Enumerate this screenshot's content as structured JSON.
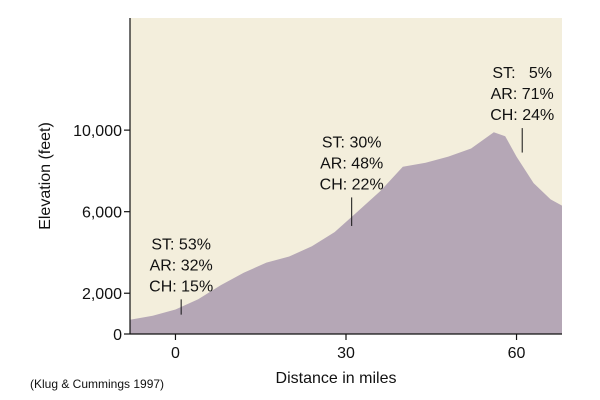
{
  "colors": {
    "background": "#f3eedc",
    "area_fill": "#b5a7b6",
    "axis": "#111111",
    "text": "#111111"
  },
  "source": "(Klug & Cummings 1997)",
  "chart_data": {
    "type": "area",
    "title": "",
    "xlabel": "Distance in miles",
    "ylabel": "Elevation (feet)",
    "xlim": [
      -8,
      68
    ],
    "ylim": [
      0,
      15500
    ],
    "x_ticks": [
      0,
      30,
      60
    ],
    "x_tick_labels": [
      "0",
      "30",
      "60"
    ],
    "y_ticks": [
      0,
      2000,
      6000,
      10000
    ],
    "y_tick_labels": [
      "0",
      "2,000",
      "6,000",
      "10,000"
    ],
    "grid": false,
    "legend": "none",
    "series": [
      {
        "x": [
          -8,
          -4,
          0,
          4,
          8,
          12,
          16,
          20,
          24,
          28,
          32,
          36,
          40,
          44,
          48,
          52,
          56,
          58,
          60,
          63,
          66,
          68
        ],
        "values": [
          700,
          900,
          1200,
          1700,
          2400,
          3000,
          3500,
          3800,
          4300,
          5000,
          6000,
          7000,
          8200,
          8400,
          8700,
          9100,
          9900,
          9700,
          8700,
          7400,
          6600,
          6300
        ]
      }
    ],
    "annotations": [
      {
        "x": 1,
        "y_bottom": 950,
        "y_top": 1700,
        "lines": [
          "ST: 53%",
          "AR: 32%",
          "CH: 15%"
        ]
      },
      {
        "x": 31,
        "y_bottom": 5300,
        "y_top": 6700,
        "lines": [
          "ST: 30%",
          "AR: 48%",
          "CH: 22%"
        ]
      },
      {
        "x": 61,
        "y_bottom": 8900,
        "y_top": 10100,
        "lines": [
          "ST:   5%",
          "AR: 71%",
          "CH: 24%"
        ]
      }
    ]
  }
}
